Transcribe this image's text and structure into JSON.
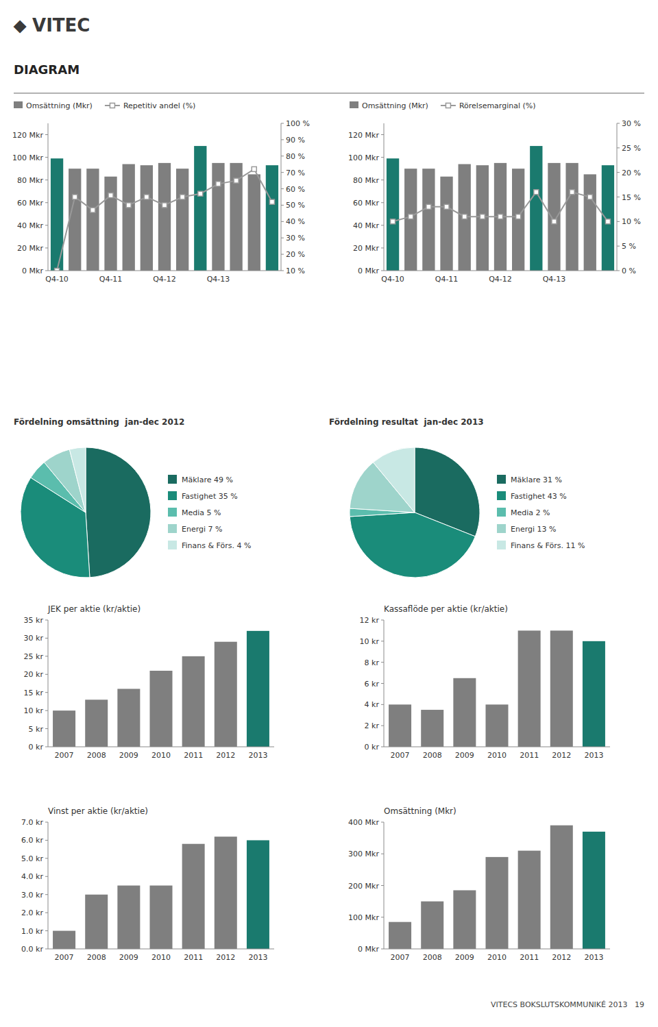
{
  "logo": "⬥ VITEC",
  "title": "DIAGRAM",
  "footer": "VITECS BOKSLUTSKOMMUNIKÉ 2013   19",
  "chart_data": [
    {
      "type": "bar",
      "categories": [
        "Q4-10",
        null,
        null,
        "Q4-11",
        null,
        null,
        "Q4-12",
        null,
        null,
        "Q4-13",
        null,
        null,
        null
      ],
      "series": [
        {
          "name": "Omsättning (Mkr)",
          "type": "bar",
          "color": "#7f7f7f",
          "colors": [
            "#1a7a6e",
            "#7f7f7f",
            "#7f7f7f",
            "#7f7f7f",
            "#7f7f7f",
            "#7f7f7f",
            "#7f7f7f",
            "#7f7f7f",
            "#1a7a6e",
            "#7f7f7f",
            "#7f7f7f",
            "#7f7f7f",
            "#1a7a6e"
          ],
          "values": [
            99,
            90,
            90,
            83,
            94,
            93,
            95,
            90,
            110,
            95,
            95,
            85,
            93
          ]
        },
        {
          "name": "Repetitiv andel (%)",
          "type": "line",
          "axis": "y2",
          "color": "#999999",
          "marker": "square",
          "values": [
            10,
            55,
            47,
            56,
            50,
            55,
            50,
            55,
            57,
            63,
            65,
            72,
            52
          ]
        }
      ],
      "ylim": [
        0,
        130
      ],
      "yticks": [
        {
          "value": 0,
          "label": "0 Mkr"
        },
        {
          "value": 20,
          "label": "20 Mkr"
        },
        {
          "value": 40,
          "label": "40 Mkr"
        },
        {
          "value": 60,
          "label": "60 Mkr"
        },
        {
          "value": 80,
          "label": "80 Mkr"
        },
        {
          "value": 100,
          "label": "100 Mkr"
        },
        {
          "value": 120,
          "label": "120 Mkr"
        }
      ],
      "y2lim": [
        10,
        100
      ],
      "y2ticks": [
        {
          "value": 10,
          "label": "10 %"
        },
        {
          "value": 20,
          "label": "20 %"
        },
        {
          "value": 30,
          "label": "30 %"
        },
        {
          "value": 40,
          "label": "40 %"
        },
        {
          "value": 50,
          "label": "50 %"
        },
        {
          "value": 60,
          "label": "60 %"
        },
        {
          "value": 70,
          "label": "70 %"
        },
        {
          "value": 80,
          "label": "80 %"
        },
        {
          "value": 90,
          "label": "90 %"
        },
        {
          "value": 100,
          "label": "100 %"
        }
      ],
      "grid": false,
      "legend": "top-left"
    },
    {
      "type": "bar",
      "categories": [
        "Q4-10",
        null,
        null,
        "Q4-11",
        null,
        null,
        "Q4-12",
        null,
        null,
        "Q4-13",
        null,
        null,
        null
      ],
      "series": [
        {
          "name": "Omsättning (Mkr)",
          "type": "bar",
          "color": "#7f7f7f",
          "colors": [
            "#1a7a6e",
            "#7f7f7f",
            "#7f7f7f",
            "#7f7f7f",
            "#7f7f7f",
            "#7f7f7f",
            "#7f7f7f",
            "#7f7f7f",
            "#1a7a6e",
            "#7f7f7f",
            "#7f7f7f",
            "#7f7f7f",
            "#1a7a6e"
          ],
          "values": [
            99,
            90,
            90,
            83,
            94,
            93,
            95,
            90,
            110,
            95,
            95,
            85,
            93
          ]
        },
        {
          "name": "Rörelsemarginal (%)",
          "type": "line",
          "axis": "y2",
          "color": "#999999",
          "marker": "square",
          "values": [
            10,
            11,
            13,
            13,
            11,
            11,
            11,
            11,
            16,
            10,
            16,
            15,
            10
          ]
        }
      ],
      "ylim": [
        0,
        130
      ],
      "yticks": [
        {
          "value": 0,
          "label": "0 Mkr"
        },
        {
          "value": 20,
          "label": "20 Mkr"
        },
        {
          "value": 40,
          "label": "40 Mkr"
        },
        {
          "value": 60,
          "label": "60 Mkr"
        },
        {
          "value": 80,
          "label": "80 Mkr"
        },
        {
          "value": 100,
          "label": "100 Mkr"
        },
        {
          "value": 120,
          "label": "120 Mkr"
        }
      ],
      "y2lim": [
        0,
        30
      ],
      "y2ticks": [
        {
          "value": 0,
          "label": "0 %"
        },
        {
          "value": 5,
          "label": "5 %"
        },
        {
          "value": 10,
          "label": "10 %"
        },
        {
          "value": 15,
          "label": "15 %"
        },
        {
          "value": 20,
          "label": "20 %"
        },
        {
          "value": 25,
          "label": "25 %"
        },
        {
          "value": 30,
          "label": "30 %"
        }
      ],
      "grid": false,
      "legend": "top-left"
    },
    {
      "type": "pie",
      "title": "Fördelning omsättning  jan-dec 2012",
      "categories": [
        "Mäklare 49 %",
        "Fastighet 35 %",
        "Media 5 %",
        "Energi 7 %",
        "Finans & Förs. 4 %"
      ],
      "values": [
        49,
        35,
        5,
        7,
        4
      ],
      "colors": [
        "#1a6b60",
        "#1a8c7a",
        "#5bbdad",
        "#9ed4cb",
        "#c8e8e4"
      ],
      "legend": "right"
    },
    {
      "type": "pie",
      "title": "Fördelning resultat  jan-dec 2013",
      "categories": [
        "Mäklare 31 %",
        "Fastighet 43 %",
        "Media 2 %",
        "Energi 13 %",
        "Finans & Förs. 11 %"
      ],
      "values": [
        31,
        43,
        2,
        13,
        11
      ],
      "colors": [
        "#1a6b60",
        "#1a8c7a",
        "#5bbdad",
        "#9ed4cb",
        "#c8e8e4"
      ],
      "legend": "right"
    },
    {
      "type": "bar",
      "title": "JEK per aktie (kr/aktie)",
      "categories": [
        "2007",
        "2008",
        "2009",
        "2010",
        "2011",
        "2012",
        "2013"
      ],
      "values": [
        10,
        13,
        16,
        21,
        25,
        29,
        32
      ],
      "colors": [
        "#7f7f7f",
        "#7f7f7f",
        "#7f7f7f",
        "#7f7f7f",
        "#7f7f7f",
        "#7f7f7f",
        "#1a7a6e"
      ],
      "ylim": [
        0,
        35
      ],
      "yticks": [
        {
          "value": 0,
          "label": "0 kr"
        },
        {
          "value": 5,
          "label": "5 kr"
        },
        {
          "value": 10,
          "label": "10 kr"
        },
        {
          "value": 15,
          "label": "15 kr"
        },
        {
          "value": 20,
          "label": "20 kr"
        },
        {
          "value": 25,
          "label": "25 kr"
        },
        {
          "value": 30,
          "label": "30 kr"
        },
        {
          "value": 35,
          "label": "35 kr"
        }
      ],
      "grid": false
    },
    {
      "type": "bar",
      "title": "Kassaflöde per aktie (kr/aktie)",
      "categories": [
        "2007",
        "2008",
        "2009",
        "2010",
        "2011",
        "2012",
        "2013"
      ],
      "values": [
        4.0,
        3.5,
        6.5,
        4.0,
        11.0,
        11.0,
        10.0
      ],
      "colors": [
        "#7f7f7f",
        "#7f7f7f",
        "#7f7f7f",
        "#7f7f7f",
        "#7f7f7f",
        "#7f7f7f",
        "#1a7a6e"
      ],
      "ylim": [
        0,
        12
      ],
      "yticks": [
        {
          "value": 0,
          "label": "0 kr"
        },
        {
          "value": 2,
          "label": "2 kr"
        },
        {
          "value": 4,
          "label": "4 kr"
        },
        {
          "value": 6,
          "label": "6 kr"
        },
        {
          "value": 8,
          "label": "8 kr"
        },
        {
          "value": 10,
          "label": "10 kr"
        },
        {
          "value": 12,
          "label": "12 kr"
        }
      ],
      "grid": false
    },
    {
      "type": "bar",
      "title": "Vinst per aktie (kr/aktie)",
      "categories": [
        "2007",
        "2008",
        "2009",
        "2010",
        "2011",
        "2012",
        "2013"
      ],
      "values": [
        1.0,
        3.0,
        3.5,
        3.5,
        5.8,
        6.2,
        6.0
      ],
      "colors": [
        "#7f7f7f",
        "#7f7f7f",
        "#7f7f7f",
        "#7f7f7f",
        "#7f7f7f",
        "#7f7f7f",
        "#1a7a6e"
      ],
      "ylim": [
        0,
        7
      ],
      "yticks": [
        {
          "value": 0,
          "label": "0.0 kr"
        },
        {
          "value": 1,
          "label": "1.0 kr"
        },
        {
          "value": 2,
          "label": "2.0 kr"
        },
        {
          "value": 3,
          "label": "3.0 kr"
        },
        {
          "value": 4,
          "label": "4.0 kr"
        },
        {
          "value": 5,
          "label": "5.0 kr"
        },
        {
          "value": 6,
          "label": "6.0 kr"
        },
        {
          "value": 7,
          "label": "7.0 kr"
        }
      ],
      "grid": false
    },
    {
      "type": "bar",
      "title": "Omsättning (Mkr)",
      "categories": [
        "2007",
        "2008",
        "2009",
        "2010",
        "2011",
        "2012",
        "2013"
      ],
      "values": [
        85,
        150,
        185,
        290,
        310,
        390,
        370
      ],
      "colors": [
        "#7f7f7f",
        "#7f7f7f",
        "#7f7f7f",
        "#7f7f7f",
        "#7f7f7f",
        "#7f7f7f",
        "#1a7a6e"
      ],
      "ylim": [
        0,
        400
      ],
      "yticks": [
        {
          "value": 0,
          "label": "0 Mkr"
        },
        {
          "value": 100,
          "label": "100 Mkr"
        },
        {
          "value": 200,
          "label": "200 Mkr"
        },
        {
          "value": 300,
          "label": "300 Mkr"
        },
        {
          "value": 400,
          "label": "400 Mkr"
        }
      ],
      "grid": false
    }
  ]
}
